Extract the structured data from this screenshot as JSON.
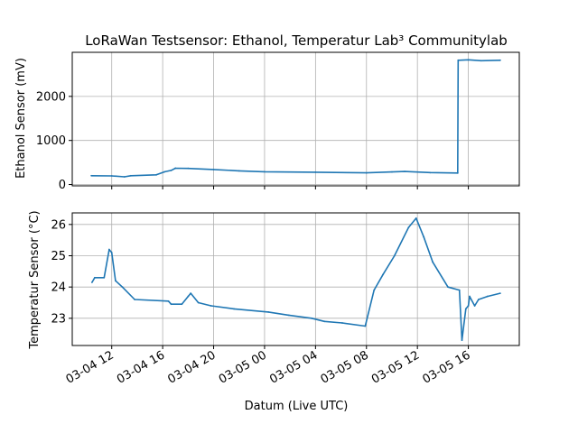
{
  "chart_data": [
    {
      "type": "line",
      "title": "LoRaWan Testsensor: Ethanol, Temperatur Lab³ Communitylab",
      "xlabel": "",
      "ylabel": "Ethanol Sensor (mV)",
      "ylim": [
        -30,
        3000
      ],
      "yticks": [
        0,
        1000,
        2000
      ],
      "ytick_labels": [
        "0",
        "1000",
        "2000"
      ],
      "grid": true,
      "series": [
        {
          "name": "Ethanol",
          "color": "#1f77b4",
          "x": [
            "03-04 10:24",
            "03-04 12:00",
            "03-04 13:00",
            "03-04 13:30",
            "03-04 15:30",
            "03-04 16:10",
            "03-04 16:40",
            "03-04 17:00",
            "03-04 18:00",
            "03-04 20:00",
            "03-04 22:00",
            "03-05 00:00",
            "03-05 04:00",
            "03-05 08:00",
            "03-05 10:00",
            "03-05 11:00",
            "03-05 13:00",
            "03-05 15:10",
            "03-05 15:12",
            "03-05 16:00",
            "03-05 17:00",
            "03-05 18:30"
          ],
          "y": [
            200,
            195,
            175,
            200,
            220,
            290,
            320,
            370,
            365,
            340,
            310,
            290,
            280,
            265,
            285,
            295,
            270,
            260,
            2820,
            2830,
            2810,
            2820
          ]
        }
      ]
    },
    {
      "type": "line",
      "xlabel": "Datum (Live UTC)",
      "ylabel": "Temperatur Sensor (°C)",
      "xlim": [
        "03-04 08:54",
        "03-05 20:00"
      ],
      "ylim": [
        22.13,
        26.37
      ],
      "yticks": [
        23,
        24,
        25,
        26
      ],
      "ytick_labels": [
        "23",
        "24",
        "25",
        "26"
      ],
      "xticks": [
        "03-04 12:00",
        "03-04 16:00",
        "03-04 20:00",
        "03-05 00:00",
        "03-05 04:00",
        "03-05 08:00",
        "03-05 12:00",
        "03-05 16:00"
      ],
      "xtick_labels": [
        "03-04 12",
        "03-04 16",
        "03-04 20",
        "03-05 00",
        "03-05 04",
        "03-05 08",
        "03-05 12",
        "03-05 16"
      ],
      "grid": true,
      "series": [
        {
          "name": "Temperatur",
          "color": "#1f77b4",
          "x": [
            "03-04 10:27",
            "03-04 10:40",
            "03-04 11:24",
            "03-04 11:48",
            "03-04 12:00",
            "03-04 12:18",
            "03-04 12:50",
            "03-04 13:48",
            "03-04 16:27",
            "03-04 16:40",
            "03-04 17:30",
            "03-04 18:00",
            "03-04 18:12",
            "03-04 18:48",
            "03-04 19:48",
            "03-04 21:36",
            "03-05 00:18",
            "03-05 01:54",
            "03-05 03:42",
            "03-05 04:42",
            "03-05 06:06",
            "03-05 07:54",
            "03-05 08:36",
            "03-05 09:18",
            "03-05 10:12",
            "03-05 11:18",
            "03-05 11:54",
            "03-05 12:30",
            "03-05 13:12",
            "03-05 14:24",
            "03-05 15:18",
            "03-05 15:30",
            "03-05 15:48",
            "03-05 16:00",
            "03-05 16:06",
            "03-05 16:30",
            "03-05 16:48",
            "03-05 17:30",
            "03-05 18:30"
          ],
          "y": [
            24.15,
            24.3,
            24.3,
            25.2,
            25.1,
            24.2,
            24.0,
            23.6,
            23.55,
            23.45,
            23.45,
            23.7,
            23.8,
            23.5,
            23.4,
            23.3,
            23.2,
            23.1,
            23.0,
            22.9,
            22.85,
            22.75,
            23.9,
            24.4,
            25.0,
            25.9,
            26.2,
            25.6,
            24.8,
            24.0,
            23.9,
            22.3,
            23.3,
            23.4,
            23.7,
            23.4,
            23.6,
            23.7,
            23.8
          ]
        }
      ]
    }
  ]
}
